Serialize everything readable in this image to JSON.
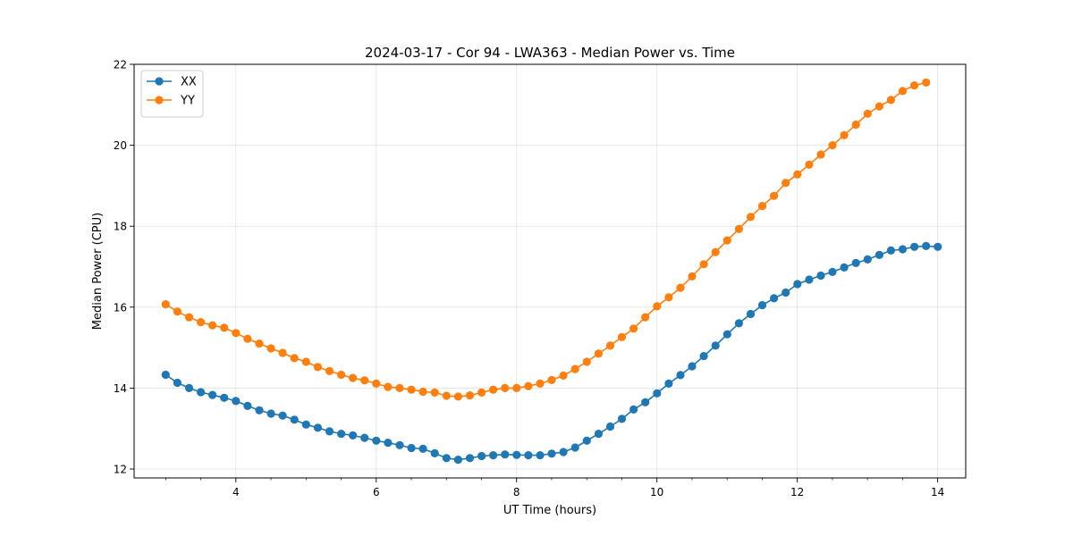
{
  "chart_data": {
    "type": "line",
    "title": "2024-03-17 - Cor 94 - LWA363 - Median Power vs. Time",
    "xlabel": "UT Time (hours)",
    "ylabel": "Median Power (CPU)",
    "xlim": [
      2.55,
      14.4
    ],
    "ylim": [
      11.78,
      22.0
    ],
    "xticks": [
      4,
      6,
      8,
      10,
      12,
      14
    ],
    "xtick_labels": [
      "4",
      "6",
      "8",
      "10",
      "12",
      "14"
    ],
    "xminor_step": 0.5,
    "yticks": [
      12,
      14,
      16,
      18,
      20,
      22
    ],
    "ytick_labels": [
      "12",
      "14",
      "16",
      "18",
      "20",
      "22"
    ],
    "grid": true,
    "legend": "top-left",
    "x_start": 3.0,
    "x_step": 0.1667,
    "series": [
      {
        "name": "XX",
        "color": "#1f77b4",
        "values": [
          14.33,
          14.13,
          14.0,
          13.9,
          13.83,
          13.76,
          13.68,
          13.56,
          13.45,
          13.37,
          13.32,
          13.22,
          13.1,
          13.02,
          12.93,
          12.87,
          12.83,
          12.77,
          12.7,
          12.65,
          12.59,
          12.52,
          12.5,
          12.39,
          12.27,
          12.23,
          12.27,
          12.32,
          12.34,
          12.36,
          12.35,
          12.34,
          12.34,
          12.38,
          12.42,
          12.53,
          12.7,
          12.87,
          13.05,
          13.24,
          13.47,
          13.65,
          13.87,
          14.11,
          14.32,
          14.54,
          14.79,
          15.05,
          15.33,
          15.6,
          15.83,
          16.05,
          16.22,
          16.36,
          16.57,
          16.68,
          16.78,
          16.87,
          16.98,
          17.09,
          17.18,
          17.29,
          17.4,
          17.43,
          17.49,
          17.51,
          17.49
        ]
      },
      {
        "name": "YY",
        "color": "#ff7f0e",
        "values": [
          16.07,
          15.89,
          15.75,
          15.63,
          15.55,
          15.49,
          15.36,
          15.22,
          15.1,
          14.98,
          14.87,
          14.74,
          14.65,
          14.52,
          14.42,
          14.33,
          14.25,
          14.19,
          14.11,
          14.03,
          14.0,
          13.96,
          13.91,
          13.89,
          13.81,
          13.79,
          13.82,
          13.89,
          13.96,
          14.0,
          14.0,
          14.05,
          14.11,
          14.2,
          14.31,
          14.47,
          14.65,
          14.85,
          15.05,
          15.26,
          15.47,
          15.75,
          16.02,
          16.24,
          16.48,
          16.76,
          17.06,
          17.36,
          17.65,
          17.93,
          18.23,
          18.5,
          18.75,
          19.07,
          19.28,
          19.52,
          19.77,
          20.0,
          20.25,
          20.51,
          20.78,
          20.96,
          21.12,
          21.34,
          21.48,
          21.55
        ]
      }
    ]
  }
}
